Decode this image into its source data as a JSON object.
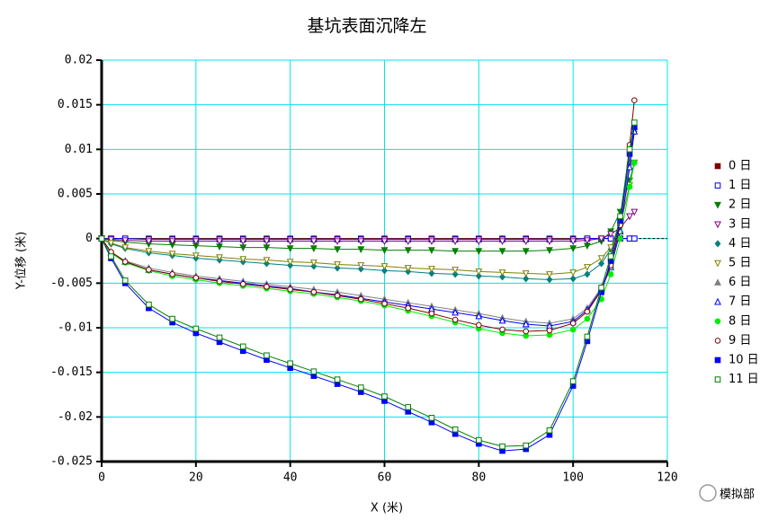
{
  "chart_data": {
    "type": "line",
    "title": "基坑表面沉降左",
    "x_label": "X (米)",
    "y_label": "Y-位移 (米)",
    "annotation": "模拟部",
    "xlim": [
      0,
      120
    ],
    "xticks": [
      0,
      20,
      40,
      60,
      80,
      100,
      120
    ],
    "ylim": [
      -0.025,
      0.02
    ],
    "yticks": [
      0.02,
      0.015,
      0.01,
      0.005,
      0,
      -0.005,
      -0.01,
      -0.015,
      -0.02,
      -0.025
    ],
    "grid": true,
    "legend": "right",
    "x": [
      0,
      2,
      5,
      10,
      15,
      20,
      25,
      30,
      35,
      40,
      45,
      50,
      55,
      60,
      65,
      70,
      75,
      80,
      85,
      90,
      95,
      100,
      103,
      106,
      108,
      110,
      112,
      113
    ],
    "series": [
      {
        "name": "0 日",
        "color": "#800000",
        "marker": "square-filled",
        "values": [
          0,
          0,
          0,
          0,
          0,
          0,
          0,
          0,
          0,
          0,
          0,
          0,
          0,
          0,
          0,
          0,
          0,
          0,
          0,
          0,
          0,
          0,
          0,
          0,
          0,
          0,
          0,
          0
        ]
      },
      {
        "name": "1 日",
        "color": "#0000ff",
        "marker": "square-open",
        "values": [
          0,
          0,
          0,
          -0.0001,
          -0.0001,
          -0.0001,
          -0.0001,
          -0.0001,
          -0.0001,
          -0.0001,
          -0.0001,
          -0.0001,
          -0.0001,
          -0.0001,
          -0.0001,
          -0.0001,
          -0.0001,
          -0.0001,
          -0.0001,
          -0.0001,
          -0.0001,
          -0.0001,
          0,
          0,
          0,
          0,
          0,
          0
        ]
      },
      {
        "name": "2 日",
        "color": "#008000",
        "marker": "triangle-down-filled",
        "values": [
          0,
          -0.0002,
          -0.0004,
          -0.0006,
          -0.0007,
          -0.0008,
          -0.0009,
          -0.001,
          -0.001,
          -0.0011,
          -0.0011,
          -0.0012,
          -0.0012,
          -0.0013,
          -0.0013,
          -0.0013,
          -0.0014,
          -0.0014,
          -0.0014,
          -0.0014,
          -0.0013,
          -0.0011,
          -0.0008,
          -0.0003,
          0.0008,
          0.003,
          0.0065,
          0.0085
        ]
      },
      {
        "name": "3 日",
        "color": "#800080",
        "marker": "triangle-down-open",
        "values": [
          0,
          -0.0001,
          -0.0002,
          -0.0003,
          -0.0003,
          -0.0003,
          -0.0003,
          -0.0003,
          -0.0003,
          -0.0003,
          -0.0003,
          -0.0003,
          -0.0003,
          -0.0003,
          -0.0003,
          -0.0003,
          -0.0003,
          -0.0003,
          -0.0003,
          -0.0003,
          -0.0003,
          -0.0003,
          -0.0002,
          0,
          0.0005,
          0.0012,
          0.0025,
          0.003
        ]
      },
      {
        "name": "4 日",
        "color": "#008080",
        "marker": "diamond-filled",
        "values": [
          0,
          -0.0006,
          -0.0011,
          -0.0016,
          -0.0019,
          -0.0022,
          -0.0024,
          -0.0026,
          -0.0028,
          -0.003,
          -0.0031,
          -0.0033,
          -0.0034,
          -0.0036,
          -0.0037,
          -0.0039,
          -0.004,
          -0.0042,
          -0.0043,
          -0.0045,
          -0.0046,
          -0.0045,
          -0.004,
          -0.0028,
          -0.0012,
          0.002,
          0.0085,
          0.012
        ]
      },
      {
        "name": "5 日",
        "color": "#808000",
        "marker": "triangle-down-open",
        "values": [
          0,
          -0.0005,
          -0.001,
          -0.0014,
          -0.0017,
          -0.0019,
          -0.0021,
          -0.0023,
          -0.0024,
          -0.0026,
          -0.0027,
          -0.0029,
          -0.003,
          -0.0031,
          -0.0033,
          -0.0034,
          -0.0035,
          -0.0037,
          -0.0038,
          -0.0039,
          -0.004,
          -0.0038,
          -0.0032,
          -0.0022,
          -0.001,
          0.0015,
          0.006,
          0.0085
        ]
      },
      {
        "name": "6 日",
        "color": "#808080",
        "marker": "triangle-up-filled",
        "values": [
          0,
          -0.0015,
          -0.0025,
          -0.0033,
          -0.0038,
          -0.0042,
          -0.0045,
          -0.0048,
          -0.0051,
          -0.0054,
          -0.0057,
          -0.006,
          -0.0064,
          -0.0068,
          -0.0072,
          -0.0076,
          -0.008,
          -0.0084,
          -0.0089,
          -0.0093,
          -0.0095,
          -0.009,
          -0.0078,
          -0.0055,
          -0.003,
          0.001,
          0.0085,
          0.0125
        ]
      },
      {
        "name": "7 日",
        "color": "#0000ff",
        "marker": "triangle-up-open",
        "values": [
          0,
          -0.0016,
          -0.0026,
          -0.0035,
          -0.004,
          -0.0044,
          -0.0047,
          -0.005,
          -0.0053,
          -0.0056,
          -0.006,
          -0.0063,
          -0.0067,
          -0.0071,
          -0.0075,
          -0.0079,
          -0.0083,
          -0.0087,
          -0.0092,
          -0.0096,
          -0.0098,
          -0.0093,
          -0.008,
          -0.0057,
          -0.0032,
          0.0008,
          0.008,
          0.012
        ]
      },
      {
        "name": "8 日",
        "color": "#00ee00",
        "marker": "circle-filled",
        "values": [
          0,
          -0.0016,
          -0.0027,
          -0.0036,
          -0.0042,
          -0.0046,
          -0.005,
          -0.0053,
          -0.0056,
          -0.0059,
          -0.0062,
          -0.0066,
          -0.007,
          -0.0075,
          -0.0081,
          -0.0087,
          -0.0094,
          -0.0101,
          -0.0106,
          -0.0109,
          -0.0108,
          -0.0102,
          -0.009,
          -0.0068,
          -0.004,
          0,
          0.0058,
          0.0085
        ]
      },
      {
        "name": "9 日",
        "color": "#800000",
        "marker": "circle-open",
        "values": [
          0,
          -0.0015,
          -0.0026,
          -0.0035,
          -0.004,
          -0.0044,
          -0.0048,
          -0.0051,
          -0.0054,
          -0.0057,
          -0.006,
          -0.0064,
          -0.0068,
          -0.0073,
          -0.0078,
          -0.0084,
          -0.0091,
          -0.0097,
          -0.0102,
          -0.0104,
          -0.0103,
          -0.0095,
          -0.0082,
          -0.0058,
          -0.003,
          0.0015,
          0.0105,
          0.0155
        ]
      },
      {
        "name": "10 日",
        "color": "#0000ff",
        "marker": "square-filled",
        "values": [
          0,
          -0.0022,
          -0.005,
          -0.0078,
          -0.0094,
          -0.0106,
          -0.0116,
          -0.0126,
          -0.0136,
          -0.0145,
          -0.0154,
          -0.0163,
          -0.0172,
          -0.0182,
          -0.0194,
          -0.0206,
          -0.0219,
          -0.023,
          -0.0238,
          -0.0236,
          -0.022,
          -0.0165,
          -0.0115,
          -0.006,
          -0.0025,
          0.002,
          0.0095,
          0.0125
        ]
      },
      {
        "name": "11 日",
        "color": "#008000",
        "marker": "square-open",
        "values": [
          0,
          -0.002,
          -0.0047,
          -0.0074,
          -0.009,
          -0.0101,
          -0.0111,
          -0.0121,
          -0.0131,
          -0.014,
          -0.0149,
          -0.0158,
          -0.0167,
          -0.0177,
          -0.0189,
          -0.0201,
          -0.0214,
          -0.0226,
          -0.0233,
          -0.0232,
          -0.0215,
          -0.016,
          -0.011,
          -0.0055,
          -0.002,
          0.0025,
          0.01,
          0.013
        ]
      }
    ]
  }
}
